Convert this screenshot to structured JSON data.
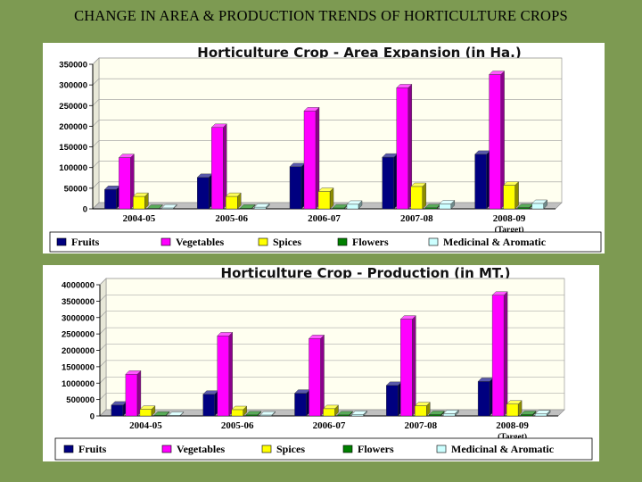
{
  "slide": {
    "title": "CHANGE IN AREA & PRODUCTION TRENDS OF HORTICULTURE CROPS"
  },
  "colors": {
    "background": "#7d9a52",
    "Fruits": "#000080",
    "Vegetables": "#ff00ff",
    "Spices": "#ffff00",
    "Flowers": "#008000",
    "Medicinal & Aromatic": "#ccffff",
    "wall": "#fffff0"
  },
  "chart_data": [
    {
      "id": "area",
      "type": "bar",
      "title": "Horticulture Crop - Area Expansion (in Ha.)",
      "categories": [
        "2004-05",
        "2005-06",
        "2006-07",
        "2007-08",
        "2008-09"
      ],
      "category_sublabels": [
        "",
        "",
        "",
        "",
        "(Target)"
      ],
      "yticks": [
        "0",
        "50000",
        "100000",
        "150000",
        "200000",
        "250000",
        "300000",
        "350000"
      ],
      "ylim": [
        0,
        350000
      ],
      "grid": true,
      "legend_position": "bottom",
      "series": [
        {
          "name": "Fruits",
          "values": [
            47000,
            76000,
            102000,
            125000,
            132000
          ]
        },
        {
          "name": "Vegetables",
          "values": [
            124000,
            197000,
            237000,
            293000,
            325000
          ]
        },
        {
          "name": "Spices",
          "values": [
            30000,
            30000,
            42000,
            54000,
            57000
          ]
        },
        {
          "name": "Flowers",
          "values": [
            1000,
            1500,
            2000,
            2500,
            3000
          ]
        },
        {
          "name": "Medicinal & Aromatic",
          "values": [
            2000,
            4000,
            11000,
            12000,
            13000
          ]
        }
      ]
    },
    {
      "id": "production",
      "type": "bar",
      "title": "Horticulture Crop - Production (in MT.)",
      "categories": [
        "2004-05",
        "2005-06",
        "2006-07",
        "2007-08",
        "2008-09"
      ],
      "category_sublabels": [
        "",
        "",
        "",
        "",
        "(Target)"
      ],
      "yticks": [
        "0",
        "500000",
        "1000000",
        "1500000",
        "2000000",
        "2500000",
        "3000000",
        "3500000",
        "4000000"
      ],
      "ylim": [
        0,
        4000000
      ],
      "grid": true,
      "legend_position": "bottom",
      "series": [
        {
          "name": "Fruits",
          "values": [
            330000,
            660000,
            690000,
            930000,
            1050000
          ]
        },
        {
          "name": "Vegetables",
          "values": [
            1270000,
            2440000,
            2360000,
            2950000,
            3680000
          ]
        },
        {
          "name": "Spices",
          "values": [
            200000,
            190000,
            220000,
            310000,
            360000
          ]
        },
        {
          "name": "Flowers",
          "values": [
            20000,
            30000,
            30000,
            40000,
            40000
          ]
        },
        {
          "name": "Medicinal & Aromatic",
          "values": [
            15000,
            25000,
            45000,
            70000,
            60000
          ]
        }
      ]
    }
  ]
}
